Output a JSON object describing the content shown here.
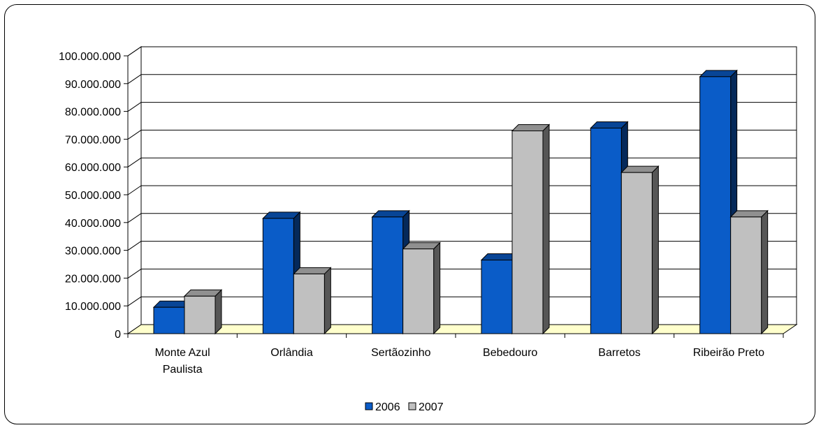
{
  "chart_data": {
    "type": "bar",
    "style": "3d-clustered-column",
    "categories": [
      [
        "Monte Azul",
        "Paulista"
      ],
      [
        "Orlândia"
      ],
      [
        "Sertãozinho"
      ],
      [
        "Bebedouro"
      ],
      [
        "Barretos"
      ],
      [
        "Ribeirão Preto"
      ]
    ],
    "series": [
      {
        "name": "2006",
        "color": "#0a5cc8",
        "values": [
          9500000,
          41500000,
          42000000,
          26500000,
          74000000,
          92500000
        ]
      },
      {
        "name": "2007",
        "color": "#c0c0c0",
        "values": [
          13500000,
          21500000,
          30500000,
          73000000,
          58000000,
          42000000
        ]
      }
    ],
    "y_ticks": [
      "0",
      "10.000.000",
      "20.000.000",
      "30.000.000",
      "40.000.000",
      "50.000.000",
      "60.000.000",
      "70.000.000",
      "80.000.000",
      "90.000.000",
      "100.000.000"
    ],
    "ylim": [
      0,
      100000000
    ],
    "grid": true,
    "legend": "bottom-center",
    "floor_color": "#ffffcc"
  }
}
